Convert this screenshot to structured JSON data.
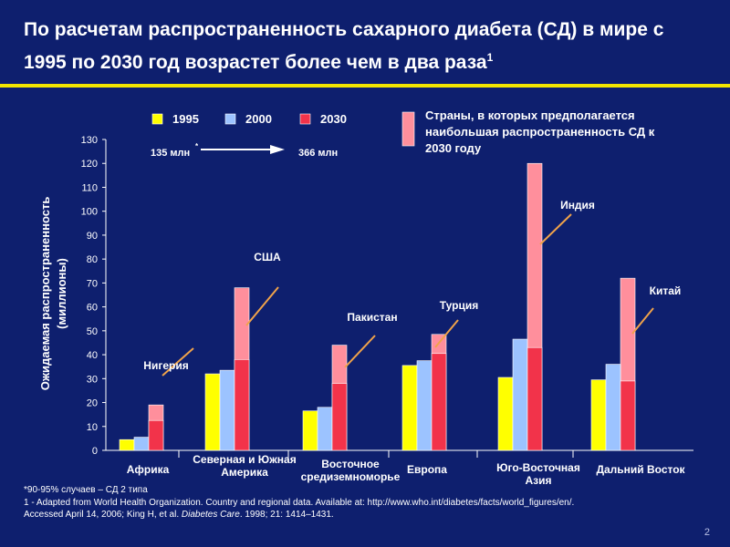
{
  "title": {
    "line1": "По расчетам распространенность сахарного диабета (СД) в мире с",
    "line2": "1995 по 2030 год возрастет более чем в два раза",
    "sup": "1"
  },
  "chart_data": {
    "type": "bar",
    "ylabel_line1": "Ожидаемая распространенность",
    "ylabel_line2": "(миллионы)",
    "ylim": [
      0,
      130
    ],
    "yticks": [
      0,
      10,
      20,
      30,
      40,
      50,
      60,
      70,
      80,
      90,
      100,
      110,
      120,
      130
    ],
    "categories": [
      [
        "Африка"
      ],
      [
        "Северная и Южная",
        "Америка"
      ],
      [
        "Восточное",
        "средиземноморье"
      ],
      [
        "Европа"
      ],
      [
        "Юго-Восточная",
        "Азия"
      ],
      [
        "Дальний Восток"
      ]
    ],
    "series": [
      {
        "name": "1995",
        "color": "#ffff00",
        "values": [
          4.5,
          32,
          16.5,
          35.5,
          30.5,
          29.5
        ]
      },
      {
        "name": "2000",
        "color": "#9cc3ff",
        "values": [
          5.5,
          33.5,
          18,
          37.5,
          46.5,
          36
        ]
      },
      {
        "name": "2030",
        "color": "#f2334a",
        "values": [
          12.5,
          38,
          28,
          40.5,
          43,
          29
        ]
      }
    ],
    "highlight": {
      "name": "Страны, в которых предполагается наибольшая распространенность СД к 2030 году",
      "color": "#ff8f9c",
      "values": [
        19,
        68,
        44,
        48.5,
        120,
        72
      ]
    },
    "country_labels": [
      "Нигерия",
      "США",
      "Пакистан",
      "Турция",
      "Индия",
      "Китай"
    ],
    "legend_highlight_lines": [
      "Страны, в которых предполагается",
      "наибольшая распространенность СД к",
      "2030 году"
    ],
    "arrow_annotation": {
      "from": "135 млн",
      "from_sup": "*",
      "to": "366 млн"
    }
  },
  "footnotes": {
    "line1": "*90-95% случаев – СД 2 типа",
    "line2": "1 - Adapted from World Health Organization. Country and regional data. Available at: http://www.who.int/diabetes/facts/world_figures/en/.",
    "line3_pre": "Accessed April 14, 2006; King H, et al. ",
    "line3_journal": "Diabetes Care",
    "line3_post": ". 1998; 21: 1414–1431."
  },
  "page_number": "2"
}
